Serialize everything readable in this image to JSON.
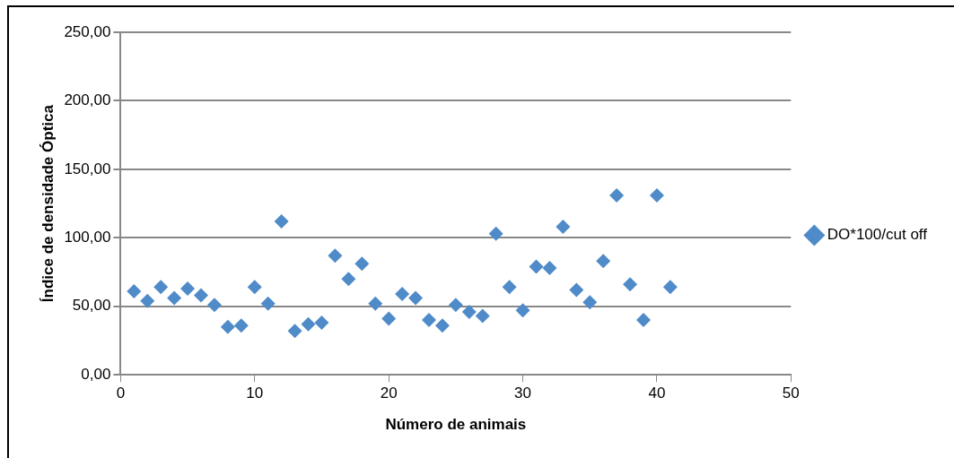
{
  "chart_data": {
    "type": "scatter",
    "xlabel": "Número de animais",
    "ylabel": "Índice de densidade Óptica",
    "x": [
      1,
      2,
      3,
      4,
      5,
      6,
      7,
      8,
      9,
      10,
      11,
      12,
      13,
      14,
      15,
      16,
      17,
      18,
      19,
      20,
      21,
      22,
      23,
      24,
      25,
      26,
      27,
      28,
      29,
      30,
      31,
      32,
      33,
      34,
      35,
      36,
      37,
      38,
      39,
      40,
      41
    ],
    "series": [
      {
        "name": "DO*100/cut off",
        "color": "#4f8ac9",
        "values": [
          61,
          54,
          64,
          56,
          63,
          58,
          51,
          35,
          36,
          64,
          52,
          112,
          32,
          37,
          38,
          87,
          70,
          81,
          52,
          41,
          59,
          56,
          40,
          36,
          51,
          46,
          43,
          103,
          64,
          47,
          79,
          78,
          108,
          62,
          53,
          83,
          131,
          66,
          40,
          131,
          64
        ]
      }
    ],
    "xlim": [
      0,
      50
    ],
    "xticks": [
      0,
      10,
      20,
      30,
      40,
      50
    ],
    "ylim": [
      0,
      250
    ],
    "yticks": [
      {
        "value": 0,
        "label": "0,00"
      },
      {
        "value": 50,
        "label": "50,00"
      },
      {
        "value": 100,
        "label": "100,00"
      },
      {
        "value": 150,
        "label": "150,00"
      },
      {
        "value": 200,
        "label": "200,00"
      },
      {
        "value": 250,
        "label": "250,00"
      }
    ],
    "grid": "y",
    "legend": "right",
    "marker": "diamond"
  }
}
